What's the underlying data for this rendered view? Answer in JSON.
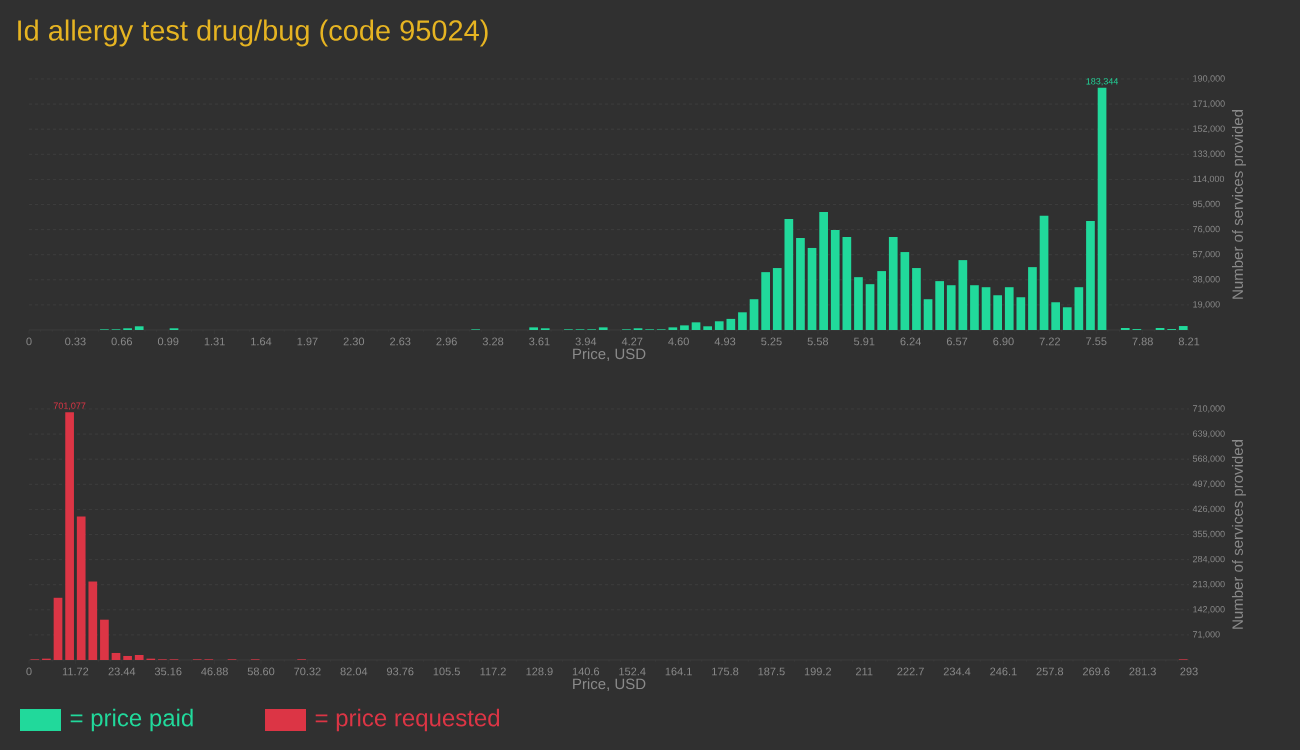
{
  "chart_data": [
    {
      "type": "histogram",
      "title": "Id allergy test drug/bug (code 95024)",
      "xlabel": "Price, USD",
      "ylabel": "Number of services provided",
      "bins": [
        0,
        0.0821,
        0.1642,
        0.2463,
        0.3284,
        0.4105,
        0.4926,
        0.5747,
        0.6568,
        0.7389,
        0.821,
        0.9031,
        0.9852,
        1.0673,
        1.1494,
        1.2315,
        1.3136,
        1.3957,
        1.4778,
        1.5599,
        1.642,
        1.7241,
        1.8062,
        1.8883,
        1.9704,
        2.0525,
        2.1346,
        2.2167,
        2.2988,
        2.3809,
        2.463,
        2.5451,
        2.6272,
        2.7093,
        2.7914,
        2.8735,
        2.9556,
        3.0377,
        3.1198,
        3.2019,
        3.284,
        3.3661,
        3.4482,
        3.5303,
        3.6124,
        3.6945,
        3.7766,
        3.8587,
        3.9408,
        4.0229,
        4.105,
        4.1871,
        4.2692,
        4.3513,
        4.4334,
        4.5155,
        4.5976,
        4.6797,
        4.7618,
        4.8439,
        4.926,
        5.0081,
        5.0902,
        5.1723,
        5.2544,
        5.3365,
        5.4186,
        5.5007,
        5.5828,
        5.6649,
        5.747,
        5.8291,
        5.9112,
        5.9933,
        6.0754,
        6.1575,
        6.2396,
        6.3217,
        6.4038,
        6.4859,
        6.568,
        6.6501,
        6.7322,
        6.8143,
        6.8964,
        6.9785,
        7.0606,
        7.1427,
        7.2248,
        7.3069,
        7.389,
        7.4711,
        7.5532,
        7.6353,
        7.7174,
        7.7995,
        7.8816,
        7.9637,
        8.0458,
        8.1279,
        8.21
      ],
      "series": [
        {
          "name": "= price paid",
          "color": "#21d99b",
          "values": [
            0,
            0,
            0,
            0,
            0,
            0,
            500,
            500,
            1300,
            2800,
            0,
            0,
            1300,
            0,
            0,
            0,
            0,
            0,
            0,
            0,
            0,
            0,
            0,
            0,
            0,
            0,
            0,
            0,
            0,
            0,
            0,
            0,
            0,
            0,
            0,
            0,
            0,
            0,
            500,
            0,
            0,
            0,
            0,
            2000,
            1300,
            0,
            500,
            500,
            500,
            2000,
            0,
            500,
            1300,
            500,
            500,
            2000,
            3500,
            5800,
            2800,
            6600,
            8400,
            13400,
            23300,
            43800,
            46900,
            84100,
            69700,
            62100,
            89400,
            75700,
            70400,
            40000,
            34700,
            44600,
            70400,
            59000,
            46900,
            23300,
            37000,
            33900,
            52900,
            33900,
            32400,
            26300,
            32400,
            24800,
            47600,
            86400,
            21000,
            17200,
            32400,
            82600,
            183344,
            0,
            1500,
            700,
            0,
            1500,
            700,
            3000
          ]
        }
      ],
      "xlim": [
        0,
        8.21
      ],
      "xticks": [
        0,
        {
          "value": 0.3284,
          "label": "0.33"
        },
        {
          "value": 0.6568,
          "label": "0.66"
        },
        {
          "value": 0.9852,
          "label": "0.99"
        },
        {
          "value": 1.3136,
          "label": "1.31"
        },
        {
          "value": 1.642,
          "label": "1.64"
        },
        {
          "value": 1.9704,
          "label": "1.97"
        },
        {
          "value": 2.2988,
          "label": "2.30"
        },
        {
          "value": 2.6272,
          "label": "2.63"
        },
        {
          "value": 2.9556,
          "label": "2.96"
        },
        {
          "value": 3.284,
          "label": "3.28"
        },
        {
          "value": 3.6124,
          "label": "3.61"
        },
        {
          "value": 3.9408,
          "label": "3.94"
        },
        {
          "value": 4.2692,
          "label": "4.27"
        },
        {
          "value": 4.5976,
          "label": "4.60"
        },
        {
          "value": 4.926,
          "label": "4.93"
        },
        {
          "value": 5.2544,
          "label": "5.25"
        },
        {
          "value": 5.5828,
          "label": "5.58"
        },
        {
          "value": 5.9112,
          "label": "5.91"
        },
        {
          "value": 6.2396,
          "label": "6.24"
        },
        {
          "value": 6.568,
          "label": "6.57"
        },
        {
          "value": 6.8964,
          "label": "6.90"
        },
        {
          "value": 7.2248,
          "label": "7.22"
        },
        {
          "value": 7.5532,
          "label": "7.55"
        },
        {
          "value": 7.8816,
          "label": "7.88"
        },
        8.21
      ],
      "ylim": [
        0,
        190000
      ],
      "yticks": [
        {
          "value": 19000,
          "label": "19,000"
        },
        {
          "value": 38000,
          "label": "38,000"
        },
        {
          "value": 57000,
          "label": "57,000"
        },
        {
          "value": 76000,
          "label": "76,000"
        },
        {
          "value": 95000,
          "label": "95,000"
        },
        {
          "value": 114000,
          "label": "114,000"
        },
        {
          "value": 133000,
          "label": "133,000"
        },
        {
          "value": 152000,
          "label": "152,000"
        },
        {
          "value": 171000,
          "label": "171,000"
        },
        {
          "value": 190000,
          "label": "190,000"
        }
      ],
      "annotations": [
        {
          "text": "183,344",
          "x": 7.5943,
          "y": 183344
        }
      ],
      "grid": "y",
      "legend": "bottom"
    },
    {
      "type": "histogram",
      "xlabel": "Price, USD",
      "ylabel": "Number of services provided",
      "bins": [
        0,
        2.93,
        5.86,
        8.79,
        11.72,
        14.65,
        17.58,
        20.51,
        23.44,
        26.37,
        29.3,
        32.23,
        35.16,
        38.09,
        41.02,
        43.95,
        46.88,
        49.81,
        52.74,
        55.67,
        58.6,
        61.53,
        64.46,
        67.39,
        70.32,
        73.25,
        76.18,
        79.11,
        82.04,
        84.97,
        87.9,
        90.83,
        93.76,
        96.69,
        99.62,
        102.55,
        105.48,
        108.41,
        111.34,
        114.27,
        117.2,
        120.13,
        123.06,
        125.99,
        128.92,
        131.85,
        134.78,
        137.71,
        140.64,
        143.57,
        146.5,
        149.43,
        152.36,
        155.29,
        158.22,
        161.15,
        164.08,
        167.01,
        169.94,
        172.87,
        175.8,
        178.73,
        181.66,
        184.59,
        187.52,
        190.45,
        193.38,
        196.31,
        199.24,
        202.17,
        205.1,
        208.03,
        210.96,
        213.89,
        216.82,
        219.75,
        222.68,
        225.61,
        228.54,
        231.47,
        234.4,
        237.33,
        240.26,
        243.19,
        246.12,
        249.05,
        251.98,
        254.91,
        257.84,
        260.77,
        263.7,
        266.63,
        269.56,
        272.49,
        275.42,
        278.35,
        281.28,
        284.21,
        287.14,
        290.07,
        293
      ],
      "series": [
        {
          "name": "= price requested",
          "color": "#dc3545",
          "values": [
            1900,
            3800,
            176000,
            701077,
            406000,
            222000,
            114000,
            19900,
            11400,
            14200,
            3800,
            1900,
            1900,
            0,
            1900,
            1900,
            0,
            1900,
            0,
            1900,
            0,
            0,
            0,
            1900,
            0,
            0,
            0,
            0,
            0,
            0,
            0,
            0,
            0,
            0,
            0,
            0,
            0,
            0,
            0,
            0,
            0,
            0,
            0,
            0,
            0,
            0,
            0,
            0,
            0,
            0,
            0,
            0,
            0,
            0,
            0,
            0,
            0,
            0,
            0,
            0,
            0,
            0,
            0,
            0,
            0,
            0,
            0,
            0,
            0,
            0,
            0,
            0,
            0,
            0,
            0,
            0,
            0,
            0,
            0,
            0,
            0,
            0,
            0,
            0,
            0,
            0,
            0,
            0,
            0,
            0,
            0,
            0,
            0,
            0,
            0,
            0,
            0,
            0,
            0,
            1900
          ]
        }
      ],
      "xlim": [
        0,
        293
      ],
      "xticks": [
        0,
        {
          "value": 11.72,
          "label": "11.72"
        },
        {
          "value": 23.44,
          "label": "23.44"
        },
        {
          "value": 35.16,
          "label": "35.16"
        },
        {
          "value": 46.88,
          "label": "46.88"
        },
        {
          "value": 58.6,
          "label": "58.60"
        },
        {
          "value": 70.32,
          "label": "70.32"
        },
        {
          "value": 82.04,
          "label": "82.04"
        },
        {
          "value": 93.76,
          "label": "93.76"
        },
        {
          "value": 105.48,
          "label": "105.5"
        },
        {
          "value": 117.2,
          "label": "117.2"
        },
        {
          "value": 128.92,
          "label": "128.9"
        },
        {
          "value": 140.64,
          "label": "140.6"
        },
        {
          "value": 152.36,
          "label": "152.4"
        },
        {
          "value": 164.08,
          "label": "164.1"
        },
        {
          "value": 175.8,
          "label": "175.8"
        },
        {
          "value": 187.52,
          "label": "187.5"
        },
        {
          "value": 199.24,
          "label": "199.2"
        },
        {
          "value": 210.96,
          "label": "211"
        },
        {
          "value": 222.68,
          "label": "222.7"
        },
        {
          "value": 234.4,
          "label": "234.4"
        },
        {
          "value": 246.12,
          "label": "246.1"
        },
        {
          "value": 257.84,
          "label": "257.8"
        },
        {
          "value": 269.56,
          "label": "269.6"
        },
        {
          "value": 281.28,
          "label": "281.3"
        },
        293
      ],
      "ylim": [
        0,
        710000
      ],
      "yticks": [
        {
          "value": 71000,
          "label": "71,000"
        },
        {
          "value": 142000,
          "label": "142,000"
        },
        {
          "value": 213000,
          "label": "213,000"
        },
        {
          "value": 284000,
          "label": "284,000"
        },
        {
          "value": 355000,
          "label": "355,000"
        },
        {
          "value": 426000,
          "label": "426,000"
        },
        {
          "value": 497000,
          "label": "497,000"
        },
        {
          "value": 568000,
          "label": "568,000"
        },
        {
          "value": 639000,
          "label": "639,000"
        },
        {
          "value": 710000,
          "label": "710,000"
        }
      ],
      "annotations": [
        {
          "text": "701,077",
          "x": 10.255,
          "y": 701077
        }
      ],
      "grid": "y",
      "legend": "bottom"
    }
  ]
}
